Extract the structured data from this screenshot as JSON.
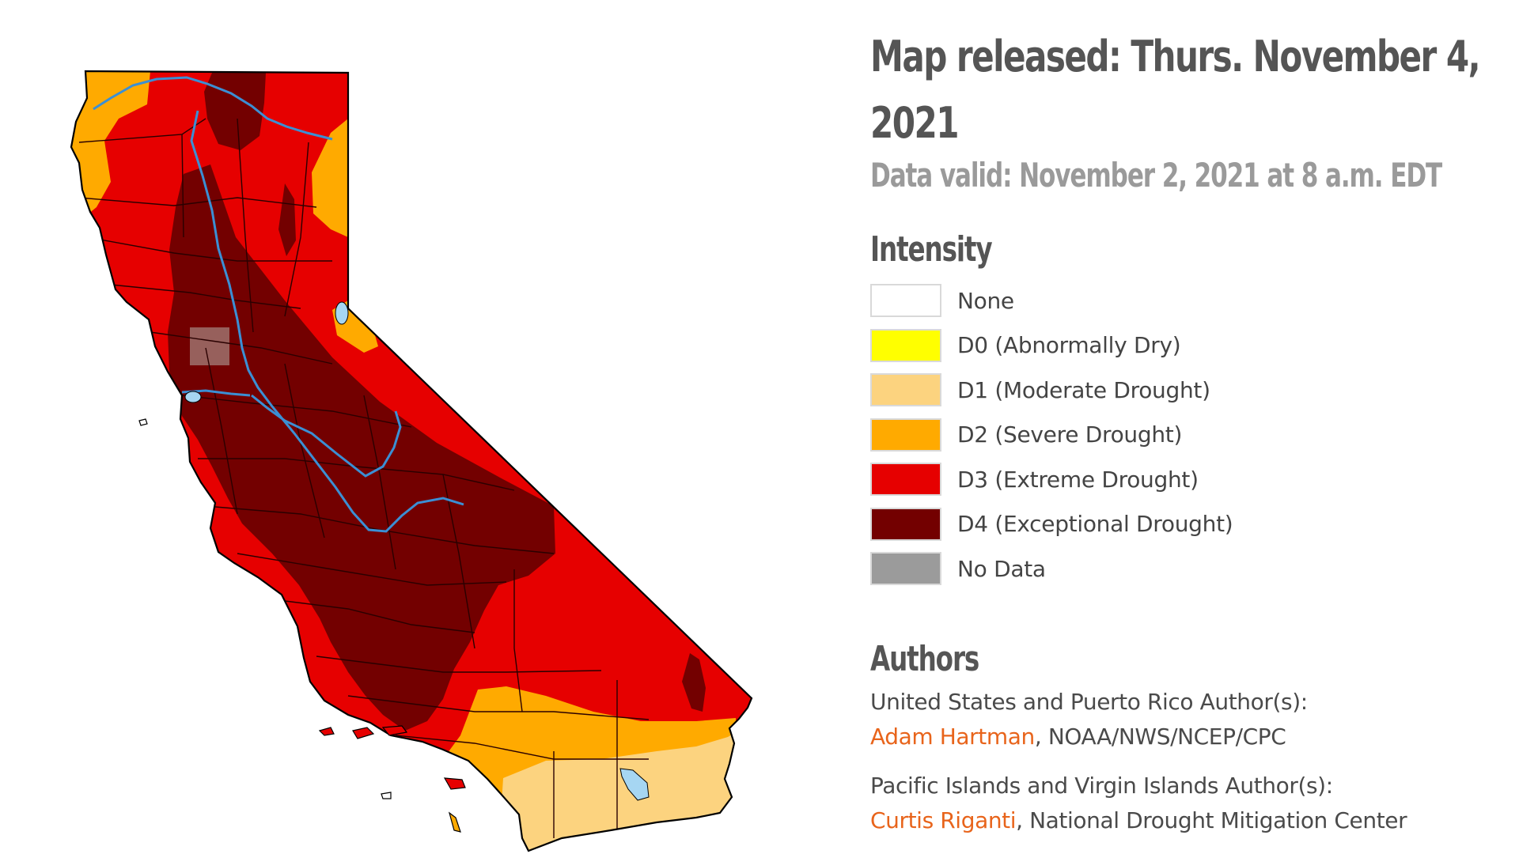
{
  "header": {
    "released": "Map released: Thurs. November 4, 2021",
    "valid": "Data valid: November 2, 2021 at 8 a.m. EDT"
  },
  "legend": {
    "heading": "Intensity",
    "items": [
      {
        "label": "None",
        "color": "#ffffff"
      },
      {
        "label": "D0 (Abnormally Dry)",
        "color": "#ffff00"
      },
      {
        "label": "D1 (Moderate Drought)",
        "color": "#fcd37f"
      },
      {
        "label": "D2 (Severe Drought)",
        "color": "#ffaa00"
      },
      {
        "label": "D3 (Extreme Drought)",
        "color": "#e60000"
      },
      {
        "label": "D4 (Exceptional Drought)",
        "color": "#730000"
      },
      {
        "label": "No Data",
        "color": "#9b9b9b"
      }
    ]
  },
  "authors": {
    "heading": "Authors",
    "groups": [
      {
        "region": "United States and Puerto Rico Author(s):",
        "name": "Adam Hartman",
        "affiliation": ", NOAA/NWS/NCEP/CPC"
      },
      {
        "region": "Pacific Islands and Virgin Islands Author(s):",
        "name": "Curtis Riganti",
        "affiliation": ", National Drought Mitigation Center"
      }
    ]
  },
  "map": {
    "region": "California",
    "colors": {
      "d1": "#fcd37f",
      "d2": "#ffaa00",
      "d3": "#e60000",
      "d4": "#730000",
      "water": "#a6d6f2",
      "river": "#3b8fd4",
      "border": "#000000",
      "county": "#2a0000"
    }
  }
}
